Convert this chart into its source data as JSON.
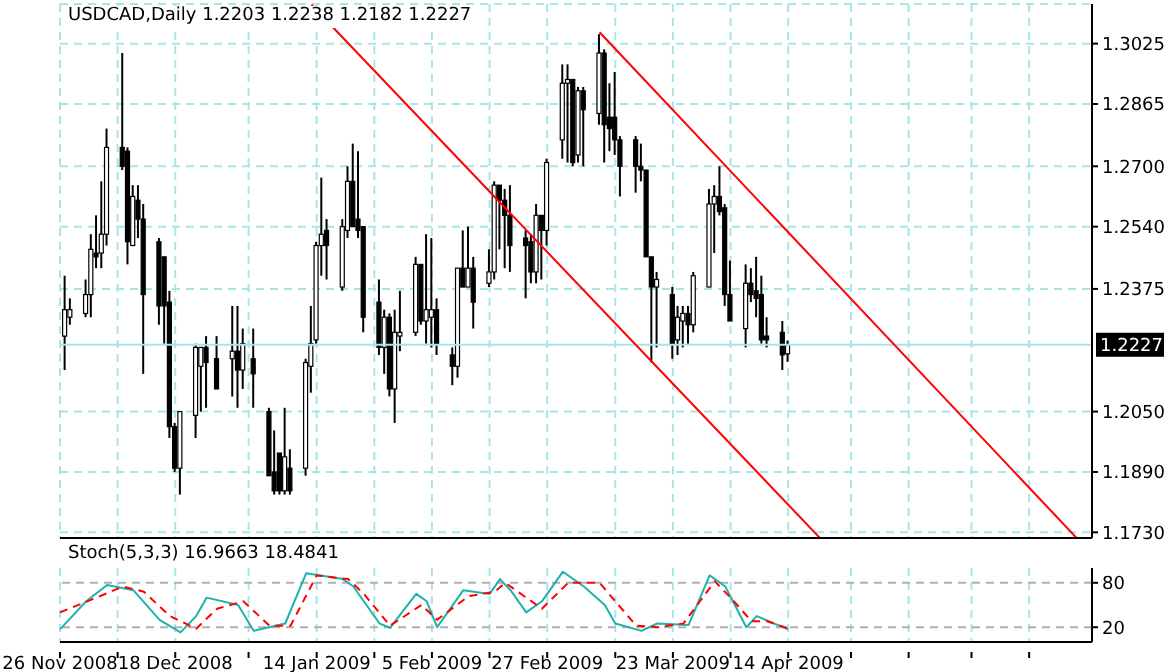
{
  "chart_data": [
    {
      "type": "candlestick",
      "title": "USDCAD,Daily 1.2203 1.2238 1.2182 1.2227",
      "x": [
        "2008-11-27",
        "2008-11-28",
        "2008-12-01",
        "2008-12-02",
        "2008-12-03",
        "2008-12-04",
        "2008-12-05",
        "2008-12-08",
        "2008-12-09",
        "2008-12-10",
        "2008-12-11",
        "2008-12-12",
        "2008-12-15",
        "2008-12-16",
        "2008-12-17",
        "2008-12-18",
        "2008-12-19",
        "2008-12-22",
        "2008-12-23",
        "2008-12-24",
        "2008-12-26",
        "2008-12-29",
        "2008-12-30",
        "2008-12-31",
        "2009-01-02",
        "2009-01-05",
        "2009-01-06",
        "2009-01-07",
        "2009-01-08",
        "2009-01-09",
        "2009-01-12",
        "2009-01-13",
        "2009-01-14",
        "2009-01-15",
        "2009-01-16",
        "2009-01-19",
        "2009-01-20",
        "2009-01-21",
        "2009-01-22",
        "2009-01-23",
        "2009-01-26",
        "2009-01-27",
        "2009-01-28",
        "2009-01-29",
        "2009-01-30",
        "2009-02-02",
        "2009-02-03",
        "2009-02-04",
        "2009-02-05",
        "2009-02-06",
        "2009-02-09",
        "2009-02-10",
        "2009-02-11",
        "2009-02-12",
        "2009-02-13",
        "2009-02-16",
        "2009-02-17",
        "2009-02-18",
        "2009-02-19",
        "2009-02-20",
        "2009-02-23",
        "2009-02-24",
        "2009-02-25",
        "2009-02-26",
        "2009-02-27",
        "2009-03-02",
        "2009-03-03",
        "2009-03-04",
        "2009-03-05",
        "2009-03-06",
        "2009-03-09",
        "2009-03-10",
        "2009-03-11",
        "2009-03-12",
        "2009-03-13",
        "2009-03-16",
        "2009-03-17",
        "2009-03-18",
        "2009-03-19",
        "2009-03-20",
        "2009-03-23",
        "2009-03-24",
        "2009-03-25",
        "2009-03-26",
        "2009-03-27",
        "2009-03-30",
        "2009-03-31",
        "2009-04-01",
        "2009-04-02",
        "2009-04-03",
        "2009-04-06",
        "2009-04-07",
        "2009-04-08",
        "2009-04-09",
        "2009-04-10",
        "2009-04-13",
        "2009-04-14"
      ],
      "ohlc": [
        [
          1.225,
          1.241,
          1.216,
          1.232
        ],
        [
          1.23,
          1.235,
          1.228,
          1.232
        ],
        [
          1.231,
          1.24,
          1.23,
          1.236
        ],
        [
          1.236,
          1.252,
          1.23,
          1.248
        ],
        [
          1.247,
          1.257,
          1.243,
          1.246
        ],
        [
          1.247,
          1.266,
          1.243,
          1.252
        ],
        [
          1.252,
          1.28,
          1.249,
          1.275
        ],
        [
          1.275,
          1.3,
          1.269,
          1.27
        ],
        [
          1.274,
          1.275,
          1.244,
          1.25
        ],
        [
          1.249,
          1.265,
          1.249,
          1.262
        ],
        [
          1.261,
          1.265,
          1.251,
          1.256
        ],
        [
          1.256,
          1.26,
          1.215,
          1.236
        ],
        [
          1.25,
          1.251,
          1.228,
          1.233
        ],
        [
          1.246,
          1.246,
          1.223,
          1.233
        ],
        [
          1.234,
          1.237,
          1.198,
          1.201
        ],
        [
          1.201,
          1.202,
          1.189,
          1.19
        ],
        [
          1.19,
          1.205,
          1.183,
          1.205
        ],
        [
          1.204,
          1.223,
          1.198,
          1.222
        ],
        [
          1.217,
          1.222,
          1.205,
          1.222
        ],
        [
          1.222,
          1.225,
          1.206,
          1.218
        ],
        [
          1.219,
          1.225,
          1.211,
          1.211
        ],
        [
          1.219,
          1.233,
          1.209,
          1.221
        ],
        [
          1.221,
          1.233,
          1.206,
          1.216
        ],
        [
          1.216,
          1.227,
          1.211,
          1.223
        ],
        [
          1.219,
          1.227,
          1.206,
          1.215
        ],
        [
          1.205,
          1.206,
          1.188,
          1.188
        ],
        [
          1.189,
          1.2,
          1.183,
          1.184
        ],
        [
          1.194,
          1.194,
          1.183,
          1.184
        ],
        [
          1.184,
          1.206,
          1.183,
          1.193
        ],
        [
          1.19,
          1.195,
          1.183,
          1.184
        ],
        [
          1.19,
          1.219,
          1.188,
          1.218
        ],
        [
          1.217,
          1.233,
          1.21,
          1.223
        ],
        [
          1.224,
          1.25,
          1.223,
          1.249
        ],
        [
          1.249,
          1.267,
          1.241,
          1.252
        ],
        [
          1.253,
          1.256,
          1.24,
          1.249
        ],
        [
          1.238,
          1.256,
          1.237,
          1.254
        ],
        [
          1.253,
          1.27,
          1.251,
          1.266
        ],
        [
          1.266,
          1.276,
          1.254,
          1.254
        ],
        [
          1.256,
          1.274,
          1.251,
          1.253
        ],
        [
          1.254,
          1.254,
          1.226,
          1.23
        ],
        [
          1.234,
          1.24,
          1.22,
          1.222
        ],
        [
          1.222,
          1.232,
          1.215,
          1.23
        ],
        [
          1.23,
          1.231,
          1.209,
          1.211
        ],
        [
          1.211,
          1.232,
          1.202,
          1.226
        ],
        [
          1.225,
          1.237,
          1.221,
          1.226
        ],
        [
          1.226,
          1.246,
          1.225,
          1.244
        ],
        [
          1.244,
          1.244,
          1.228,
          1.229
        ],
        [
          1.229,
          1.252,
          1.223,
          1.232
        ],
        [
          1.23,
          1.251,
          1.222,
          1.232
        ],
        [
          1.232,
          1.235,
          1.22,
          1.223
        ],
        [
          1.22,
          1.222,
          1.212,
          1.217
        ],
        [
          1.217,
          1.243,
          1.214,
          1.243
        ],
        [
          1.243,
          1.253,
          1.238,
          1.238
        ],
        [
          1.238,
          1.254,
          1.238,
          1.243
        ],
        [
          1.243,
          1.246,
          1.227,
          1.234
        ],
        [
          1.239,
          1.248,
          1.238,
          1.242
        ],
        [
          1.242,
          1.266,
          1.24,
          1.265
        ],
        [
          1.265,
          1.265,
          1.248,
          1.261
        ],
        [
          1.261,
          1.264,
          1.243,
          1.257
        ],
        [
          1.257,
          1.265,
          1.242,
          1.249
        ],
        [
          1.251,
          1.253,
          1.235,
          1.249
        ],
        [
          1.25,
          1.252,
          1.239,
          1.242
        ],
        [
          1.242,
          1.26,
          1.239,
          1.257
        ],
        [
          1.257,
          1.257,
          1.24,
          1.253
        ],
        [
          1.253,
          1.272,
          1.249,
          1.271
        ],
        [
          1.277,
          1.297,
          1.272,
          1.292
        ],
        [
          1.292,
          1.297,
          1.271,
          1.293
        ],
        [
          1.293,
          1.293,
          1.27,
          1.271
        ],
        [
          1.273,
          1.291,
          1.271,
          1.29
        ],
        [
          1.29,
          1.291,
          1.27,
          1.285
        ],
        [
          1.284,
          1.305,
          1.281,
          1.3
        ],
        [
          1.3,
          1.301,
          1.271,
          1.281
        ],
        [
          1.283,
          1.292,
          1.274,
          1.28
        ],
        [
          1.283,
          1.295,
          1.273,
          1.277
        ],
        [
          1.277,
          1.278,
          1.262,
          1.27
        ],
        [
          1.277,
          1.278,
          1.263,
          1.27
        ],
        [
          1.27,
          1.276,
          1.266,
          1.269
        ],
        [
          1.269,
          1.269,
          1.246,
          1.246
        ],
        [
          1.246,
          1.246,
          1.218,
          1.238
        ],
        [
          1.238,
          1.242,
          1.222,
          1.24
        ],
        [
          1.236,
          1.238,
          1.219,
          1.223
        ],
        [
          1.224,
          1.233,
          1.22,
          1.23
        ],
        [
          1.229,
          1.233,
          1.222,
          1.231
        ],
        [
          1.231,
          1.233,
          1.223,
          1.228
        ],
        [
          1.228,
          1.242,
          1.226,
          1.241
        ],
        [
          1.238,
          1.264,
          1.238,
          1.26
        ],
        [
          1.26,
          1.265,
          1.247,
          1.262
        ],
        [
          1.262,
          1.27,
          1.257,
          1.258
        ],
        [
          1.259,
          1.26,
          1.233,
          1.236
        ],
        [
          1.236,
          1.245,
          1.229,
          1.229
        ],
        [
          1.227,
          1.244,
          1.222,
          1.239
        ],
        [
          1.239,
          1.243,
          1.234,
          1.236
        ],
        [
          1.237,
          1.246,
          1.23,
          1.235
        ],
        [
          1.236,
          1.241,
          1.223,
          1.224
        ],
        [
          1.225,
          1.23,
          1.222,
          1.224
        ],
        [
          1.226,
          1.229,
          1.216,
          1.22
        ],
        [
          1.2203,
          1.2238,
          1.2182,
          1.2227
        ]
      ],
      "series": [
        {
          "type": "line",
          "color": "#ff0000",
          "x": [
            "2009-03-09",
            "2009-06-08"
          ],
          "values": [
            1.3055,
            1.1716
          ]
        },
        {
          "type": "line",
          "color": "#ff0000",
          "x": [
            "2009-01-13",
            "2009-04-20"
          ],
          "values": [
            1.3128,
            1.1716
          ]
        }
      ],
      "xlim": [
        "2008-11-26",
        "2009-06-11"
      ],
      "xticks": [
        {
          "value": "2008-11-26",
          "label": null
        },
        {
          "value": "2008-12-07",
          "label": null
        },
        {
          "value": "2008-12-18",
          "label": null
        },
        {
          "value": "2009-01-01",
          "label": null
        },
        {
          "value": "2009-01-14",
          "label": null
        },
        {
          "value": "2009-01-25",
          "label": null
        },
        {
          "value": "2009-02-05",
          "label": null
        },
        {
          "value": "2009-02-16",
          "label": null
        },
        {
          "value": "2009-02-27",
          "label": null
        },
        {
          "value": "2009-03-12",
          "label": null
        },
        {
          "value": "2009-03-23",
          "label": null
        },
        {
          "value": "2009-04-03",
          "label": null
        },
        {
          "value": "2009-04-14",
          "label": null
        },
        {
          "value": "2009-04-26",
          "label": null
        },
        {
          "value": "2009-05-07",
          "label": null
        },
        {
          "value": "2009-05-19",
          "label": null
        },
        {
          "value": "2009-05-30",
          "label": null
        }
      ],
      "ylim": [
        1.1715,
        1.313
      ],
      "yticks": [
        {
          "value": 1.173,
          "label": "1.1730"
        },
        {
          "value": 1.189,
          "label": "1.1890"
        },
        {
          "value": 1.205,
          "label": "1.2050"
        },
        1.2375,
        {
          "value": 1.254,
          "label": "1.2540"
        },
        {
          "value": 1.27,
          "label": "1.2700"
        },
        1.2865,
        1.3025
      ],
      "ref_lines": [
        {
          "axis": "y",
          "value": 1.2227,
          "label": "1.2227",
          "color": "#a8e6e6"
        }
      ],
      "grid": true,
      "tick_labels": "y"
    },
    {
      "type": "line",
      "title": "Stoch(5,3,3) 16.9663 18.4841",
      "series": [
        {
          "color": "#20b2aa",
          "x": [
            "2008-11-26",
            "2008-12-01",
            "2008-12-05",
            "2008-12-10",
            "2008-12-15",
            "2008-12-19",
            "2008-12-22",
            "2008-12-24",
            "2008-12-30",
            "2009-01-02",
            "2009-01-08",
            "2009-01-12",
            "2009-01-19",
            "2009-01-21",
            "2009-01-26",
            "2009-01-28",
            "2009-02-02",
            "2009-02-04",
            "2009-02-06",
            "2009-02-11",
            "2009-02-16",
            "2009-02-18",
            "2009-02-20",
            "2009-02-23",
            "2009-02-26",
            "2009-03-02",
            "2009-03-06",
            "2009-03-10",
            "2009-03-12",
            "2009-03-17",
            "2009-03-20",
            "2009-03-26",
            "2009-03-30",
            "2009-04-02",
            "2009-04-06",
            "2009-04-08",
            "2009-04-14"
          ],
          "values": [
            17,
            55,
            77,
            70,
            30,
            13,
            35,
            60,
            50,
            15,
            25,
            93,
            85,
            75,
            25,
            19,
            65,
            55,
            20,
            70,
            65,
            85,
            70,
            40,
            55,
            95,
            75,
            50,
            25,
            15,
            25,
            23,
            90,
            75,
            20,
            35,
            16.9663
          ]
        },
        {
          "color": "#ff0000",
          "line_style": "dashed",
          "x": [
            "2008-11-26",
            "2008-12-03",
            "2008-12-08",
            "2008-12-12",
            "2008-12-17",
            "2008-12-22",
            "2008-12-26",
            "2008-12-31",
            "2009-01-05",
            "2009-01-09",
            "2009-01-14",
            "2009-01-20",
            "2009-01-23",
            "2009-01-28",
            "2009-02-03",
            "2009-02-06",
            "2009-02-12",
            "2009-02-17",
            "2009-02-19",
            "2009-02-23",
            "2009-02-26",
            "2009-03-03",
            "2009-03-09",
            "2009-03-12",
            "2009-03-16",
            "2009-03-20",
            "2009-03-25",
            "2009-03-31",
            "2009-04-03",
            "2009-04-07",
            "2009-04-10",
            "2009-04-14"
          ],
          "values": [
            40,
            60,
            75,
            68,
            35,
            18,
            45,
            55,
            22,
            22,
            90,
            85,
            65,
            22,
            50,
            30,
            62,
            68,
            80,
            60,
            45,
            80,
            80,
            55,
            22,
            20,
            25,
            82,
            60,
            28,
            28,
            18.4841
          ]
        }
      ],
      "xlim": [
        "2008-11-26",
        "2009-06-11"
      ],
      "xticks": [
        {
          "value": "2008-11-26",
          "label": "26 Nov 2008"
        },
        {
          "value": "2008-12-07",
          "label": null
        },
        {
          "value": "2008-12-18",
          "label": "18 Dec 2008"
        },
        {
          "value": "2009-01-01",
          "label": null
        },
        {
          "value": "2009-01-14",
          "label": "14 Jan 2009"
        },
        {
          "value": "2009-01-25",
          "label": null
        },
        {
          "value": "2009-02-05",
          "label": "5 Feb 2009"
        },
        {
          "value": "2009-02-16",
          "label": null
        },
        {
          "value": "2009-02-27",
          "label": "27 Feb 2009"
        },
        {
          "value": "2009-03-12",
          "label": null
        },
        {
          "value": "2009-03-23",
          "label": "23 Mar 2009"
        },
        {
          "value": "2009-04-03",
          "label": null
        },
        {
          "value": "2009-04-14",
          "label": "14 Apr 2009"
        },
        {
          "value": "2009-04-26",
          "label": null
        },
        {
          "value": "2009-05-07",
          "label": null
        },
        {
          "value": "2009-05-19",
          "label": null
        },
        {
          "value": "2009-05-30",
          "label": null
        }
      ],
      "ylim": [
        0,
        100
      ],
      "yticks": [
        20,
        80
      ],
      "ref_lines": [
        {
          "axis": "y",
          "value": 20,
          "color": "#b0b0b0",
          "line_style": "dashed"
        },
        {
          "axis": "y",
          "value": 80,
          "color": "#b0b0b0",
          "line_style": "dashed"
        }
      ],
      "grid": "x"
    }
  ]
}
